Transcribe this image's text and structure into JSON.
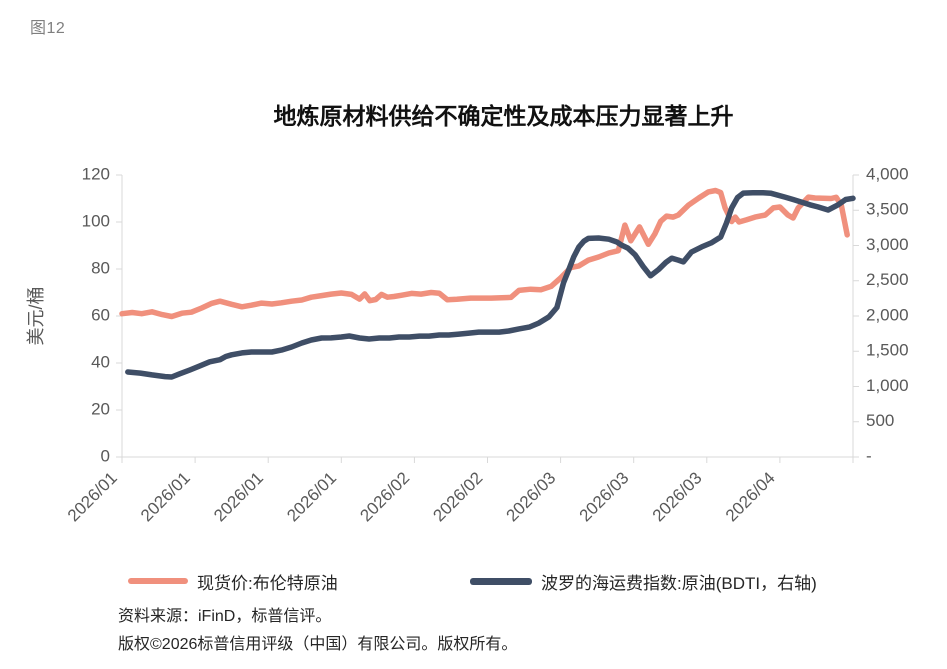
{
  "figure_label": "图12",
  "title": "地炼原材料供给不确定性及成本压力显著上升",
  "colors": {
    "brent": "#F0907D",
    "bdti": "#3F4E66",
    "axis_line": "#D9D9D9",
    "tick_text": "#595959",
    "title_text": "#111111",
    "figure_label_text": "#7f7f7f",
    "source_text": "#262626"
  },
  "y_axis_left": {
    "title": "美元/桶",
    "tick_labels": [
      "0",
      "20",
      "40",
      "60",
      "80",
      "100",
      "120"
    ]
  },
  "y_axis_right": {
    "tick_labels": [
      "-",
      "500",
      "1,000",
      "1,500",
      "2,000",
      "2,500",
      "3,000",
      "3,500",
      "4,000"
    ]
  },
  "x_axis": {
    "tick_labels": [
      "2026/01",
      "2026/01",
      "2026/01",
      "2026/01",
      "2026/02",
      "2026/02",
      "2026/03",
      "2026/03",
      "2026/03",
      "2026/04"
    ]
  },
  "legend": {
    "items": [
      {
        "label": "现货价:布伦特原油",
        "color": "#F0907D"
      },
      {
        "label": "波罗的海运费指数:原油(BDTI，右轴)",
        "color": "#3F4E66"
      }
    ]
  },
  "source": {
    "line1": "资料来源：iFinD，标普信评。",
    "line2": "版权©2026标普信用评级（中国）有限公司。版权所有。"
  },
  "chart_data": {
    "type": "line",
    "title": "地炼原材料供给不确定性及成本压力显著上升",
    "x_note": "x values are percent of axis width, Jan-Apr 2026; ticks every 10%",
    "ylabel_left": "美元/桶",
    "ylim_left": [
      0,
      120
    ],
    "ylim_right": [
      0,
      4000
    ],
    "x_tick_labels": [
      "2026/01",
      "2026/01",
      "2026/01",
      "2026/01",
      "2026/02",
      "2026/02",
      "2026/03",
      "2026/03",
      "2026/03",
      "2026/04"
    ],
    "grid": false,
    "legend_position": "bottom",
    "series": [
      {
        "name": "现货价:布伦特原油",
        "axis": "left",
        "unit": "美元/桶",
        "color": "#F0907D",
        "points": [
          [
            0,
            61
          ],
          [
            1.4,
            61.5
          ],
          [
            2.7,
            61
          ],
          [
            4.1,
            61.8
          ],
          [
            5.5,
            60.6
          ],
          [
            6.8,
            59.8
          ],
          [
            8.2,
            61.2
          ],
          [
            9.5,
            61.6
          ],
          [
            10.9,
            63.4
          ],
          [
            12.3,
            65.4
          ],
          [
            13.4,
            66.3
          ],
          [
            15,
            65
          ],
          [
            16.4,
            63.9
          ],
          [
            17.7,
            64.6
          ],
          [
            19.1,
            65.5
          ],
          [
            20.5,
            65.1
          ],
          [
            21.8,
            65.6
          ],
          [
            23.2,
            66.3
          ],
          [
            24.6,
            66.8
          ],
          [
            25.9,
            68
          ],
          [
            27.3,
            68.7
          ],
          [
            28.6,
            69.3
          ],
          [
            30,
            69.8
          ],
          [
            31.4,
            69.2
          ],
          [
            32.5,
            67.2
          ],
          [
            33.2,
            69.4
          ],
          [
            33.9,
            66.5
          ],
          [
            34.7,
            67
          ],
          [
            35.5,
            69.2
          ],
          [
            36.3,
            68
          ],
          [
            37.2,
            68.3
          ],
          [
            38.2,
            68.8
          ],
          [
            39.6,
            69.6
          ],
          [
            40.9,
            69.3
          ],
          [
            42.3,
            70
          ],
          [
            43.4,
            69.7
          ],
          [
            44.5,
            66.9
          ],
          [
            45.8,
            67.1
          ],
          [
            47.7,
            67.6
          ],
          [
            50.5,
            67.6
          ],
          [
            53.2,
            67.9
          ],
          [
            54.3,
            70.9
          ],
          [
            55.9,
            71.4
          ],
          [
            57.3,
            71.2
          ],
          [
            58.7,
            72.6
          ],
          [
            60,
            76.2
          ],
          [
            61.4,
            80.6
          ],
          [
            62.5,
            81.3
          ],
          [
            63.8,
            83.8
          ],
          [
            65.2,
            85.1
          ],
          [
            66.6,
            86.8
          ],
          [
            67.9,
            87.8
          ],
          [
            68.8,
            98.7
          ],
          [
            69.6,
            92
          ],
          [
            70.8,
            97.9
          ],
          [
            72,
            90.5
          ],
          [
            72.9,
            95
          ],
          [
            73.7,
            100.3
          ],
          [
            74.5,
            102.5
          ],
          [
            75.4,
            102.1
          ],
          [
            76.1,
            103
          ],
          [
            77.5,
            107.2
          ],
          [
            78.9,
            110.2
          ],
          [
            80.2,
            112.8
          ],
          [
            81.2,
            113.4
          ],
          [
            81.9,
            112.5
          ],
          [
            82.5,
            106
          ],
          [
            83.4,
            100.2
          ],
          [
            83.9,
            102.1
          ],
          [
            84.4,
            100
          ],
          [
            85.4,
            100.9
          ],
          [
            86.6,
            102.1
          ],
          [
            88,
            103
          ],
          [
            89.1,
            106
          ],
          [
            90,
            106.4
          ],
          [
            91.1,
            103
          ],
          [
            91.8,
            101.7
          ],
          [
            92.5,
            106
          ],
          [
            93.9,
            110.6
          ],
          [
            94.8,
            110.2
          ],
          [
            97,
            110
          ],
          [
            97.7,
            110.5
          ],
          [
            98.4,
            107.2
          ],
          [
            99.2,
            94.5
          ]
        ]
      },
      {
        "name": "波罗的海运费指数:原油(BDTI，右轴)",
        "axis": "right",
        "unit": "index",
        "color": "#3F4E66",
        "points": [
          [
            0.8,
            1205
          ],
          [
            2.5,
            1190
          ],
          [
            4.1,
            1165
          ],
          [
            5.9,
            1140
          ],
          [
            6.8,
            1135
          ],
          [
            7.9,
            1180
          ],
          [
            9.3,
            1235
          ],
          [
            10.6,
            1290
          ],
          [
            12,
            1350
          ],
          [
            13.4,
            1380
          ],
          [
            14.2,
            1425
          ],
          [
            15,
            1450
          ],
          [
            16.4,
            1477
          ],
          [
            17.7,
            1490
          ],
          [
            19.1,
            1490
          ],
          [
            20.5,
            1490
          ],
          [
            21.8,
            1517
          ],
          [
            23.2,
            1560
          ],
          [
            24.6,
            1617
          ],
          [
            25.9,
            1660
          ],
          [
            27.3,
            1688
          ],
          [
            28.6,
            1690
          ],
          [
            30,
            1702
          ],
          [
            31.1,
            1716
          ],
          [
            32.5,
            1688
          ],
          [
            33.8,
            1674
          ],
          [
            35.2,
            1688
          ],
          [
            36.6,
            1688
          ],
          [
            37.9,
            1702
          ],
          [
            39.3,
            1702
          ],
          [
            40.7,
            1715
          ],
          [
            42,
            1715
          ],
          [
            43.4,
            1730
          ],
          [
            44.7,
            1730
          ],
          [
            46.1,
            1743
          ],
          [
            47.5,
            1758
          ],
          [
            48.8,
            1772
          ],
          [
            50.2,
            1772
          ],
          [
            51.6,
            1772
          ],
          [
            52.9,
            1787
          ],
          [
            54.3,
            1817
          ],
          [
            55.7,
            1843
          ],
          [
            57,
            1900
          ],
          [
            58.4,
            1987
          ],
          [
            59.5,
            2120
          ],
          [
            60.4,
            2470
          ],
          [
            61.1,
            2650
          ],
          [
            61.8,
            2840
          ],
          [
            62.5,
            2980
          ],
          [
            63.2,
            3063
          ],
          [
            63.8,
            3100
          ],
          [
            65.2,
            3107
          ],
          [
            66.6,
            3090
          ],
          [
            67.7,
            3050
          ],
          [
            68.3,
            3007
          ],
          [
            69.2,
            2963
          ],
          [
            70.2,
            2867
          ],
          [
            71.3,
            2700
          ],
          [
            72.3,
            2570
          ],
          [
            73.4,
            2660
          ],
          [
            74.4,
            2760
          ],
          [
            75.2,
            2820
          ],
          [
            76.1,
            2793
          ],
          [
            76.8,
            2767
          ],
          [
            77.9,
            2907
          ],
          [
            79.3,
            2980
          ],
          [
            80.6,
            3037
          ],
          [
            81.9,
            3120
          ],
          [
            82.7,
            3320
          ],
          [
            83.4,
            3533
          ],
          [
            84.2,
            3680
          ],
          [
            85,
            3743
          ],
          [
            86.3,
            3747
          ],
          [
            87.7,
            3747
          ],
          [
            88.8,
            3740
          ],
          [
            90.7,
            3687
          ],
          [
            91.8,
            3653
          ],
          [
            92.9,
            3617
          ],
          [
            94.1,
            3577
          ],
          [
            95.2,
            3547
          ],
          [
            96.6,
            3503
          ],
          [
            97.9,
            3573
          ],
          [
            99,
            3653
          ],
          [
            100,
            3670
          ]
        ]
      }
    ]
  }
}
